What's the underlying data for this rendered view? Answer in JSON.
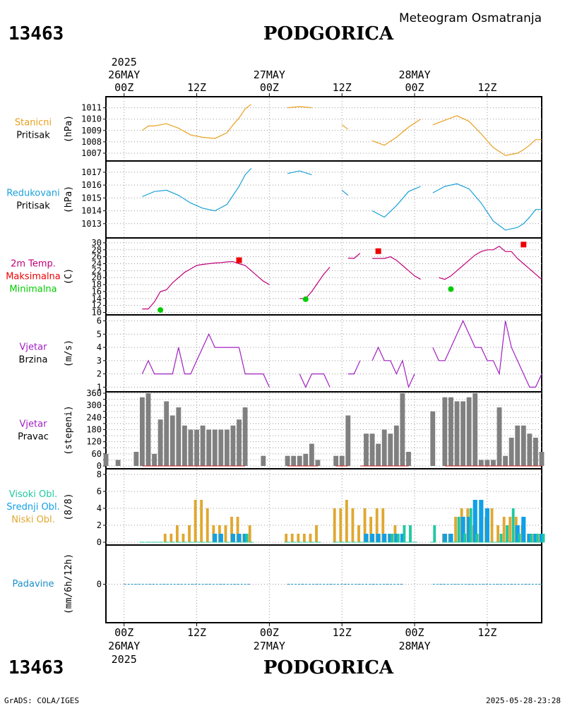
{
  "header": {
    "station_id": "13463",
    "station_name": "PODGORICA",
    "title": "Meteogram Osmatranja",
    "date_year": "2025"
  },
  "footer": {
    "station_id": "13463",
    "station_name": "PODGORICA",
    "credit": "GrADS: COLA/IGES",
    "generated": "2025-05-28-23:28",
    "date_year": "2025"
  },
  "time_axis": {
    "start": "2025-05-25 21Z",
    "step_hours": 3,
    "n": 25,
    "ticks": [
      {
        "hour": 3,
        "label": "00Z",
        "date": "26MAY"
      },
      {
        "hour": 15,
        "label": "12Z"
      },
      {
        "hour": 27,
        "label": "00Z",
        "date": "27MAY"
      },
      {
        "hour": 39,
        "label": "12Z"
      },
      {
        "hour": 51,
        "label": "00Z",
        "date": "28MAY"
      },
      {
        "hour": 63,
        "label": "12Z"
      }
    ]
  },
  "colors": {
    "station_pressure": "#e8a020",
    "sea_pressure": "#1aa0d8",
    "temperature": "#c0007a",
    "tmax": "#ee0000",
    "tmin": "#00cc00",
    "wind": "#a020c0",
    "direction_bar": "#808080",
    "high_cloud": "#20c8a0",
    "mid_cloud": "#10a0e8",
    "low_cloud": "#e0a830",
    "precip": "#1a90c8"
  },
  "chart_data": [
    {
      "type": "line",
      "id": "station_pressure",
      "label_lines": [
        "Stanicni",
        "Pritisak"
      ],
      "unit": "(hPa)",
      "ylim": [
        1006.5,
        1011.6
      ],
      "yticks": [
        1007,
        1008,
        1009,
        1010,
        1011
      ],
      "x_hours": [
        6,
        7,
        8,
        10,
        12,
        14,
        16,
        18,
        20,
        21,
        22,
        23,
        24,
        25,
        26,
        27,
        28,
        30,
        32,
        34,
        36,
        37,
        38,
        39,
        40,
        41,
        42,
        44,
        46,
        48,
        50,
        52,
        53,
        54,
        56,
        58,
        60,
        62,
        64,
        66,
        68,
        69,
        70,
        71,
        72
      ],
      "values": [
        1009.0,
        1009.4,
        1009.4,
        1009.6,
        1009.2,
        1008.6,
        1008.4,
        1008.3,
        1008.8,
        1009.5,
        1010.1,
        1010.9,
        1011.3,
        null,
        null,
        null,
        null,
        1011.0,
        1011.1,
        1011.0,
        null,
        null,
        null,
        1009.5,
        1009.1,
        null,
        null,
        1008.1,
        1007.7,
        1008.4,
        1009.3,
        1010.0,
        null,
        1009.5,
        1009.9,
        1010.3,
        1009.8,
        1008.7,
        1007.5,
        1006.8,
        1007.0,
        1007.3,
        1007.7,
        1008.2,
        1008.2
      ]
    },
    {
      "type": "line",
      "id": "sea_pressure",
      "label_lines": [
        "Redukovani",
        "Pritisak"
      ],
      "unit": "(hPa)",
      "ylim": [
        1012.0,
        1017.6
      ],
      "yticks": [
        1013,
        1014,
        1015,
        1016,
        1017
      ],
      "x_hours": [
        6,
        8,
        10,
        12,
        14,
        16,
        18,
        20,
        22,
        23,
        24,
        25,
        26,
        27,
        28,
        30,
        32,
        34,
        36,
        37,
        38,
        39,
        40,
        41,
        42,
        44,
        46,
        48,
        50,
        52,
        53,
        54,
        56,
        58,
        60,
        62,
        64,
        66,
        68,
        69,
        70,
        71,
        72
      ],
      "values": [
        1015.1,
        1015.5,
        1015.6,
        1015.2,
        1014.6,
        1014.2,
        1014.0,
        1014.5,
        1015.9,
        1016.8,
        1017.3,
        null,
        null,
        null,
        null,
        1016.9,
        1017.1,
        1016.8,
        null,
        null,
        null,
        1015.6,
        1015.2,
        null,
        null,
        1014.0,
        1013.5,
        1014.4,
        1015.5,
        1015.9,
        null,
        1015.4,
        1015.9,
        1016.1,
        1015.7,
        1014.6,
        1013.2,
        1012.5,
        1012.7,
        1013.0,
        1013.5,
        1014.1,
        1014.1
      ]
    },
    {
      "type": "line",
      "id": "temperature",
      "label_lines": [
        "2m Temp.",
        "Maksimalna",
        "Minimalna"
      ],
      "label_line_ids": [
        "temperature",
        "tmax",
        "tmin"
      ],
      "unit": "(C)",
      "ylim": [
        9.5,
        31
      ],
      "yticks": [
        10,
        12,
        14,
        16,
        18,
        20,
        22,
        24,
        26,
        28,
        30
      ],
      "x_hours": [
        3,
        4,
        5,
        6,
        7,
        8,
        9,
        10,
        11,
        12,
        13,
        14,
        15,
        16,
        17,
        18,
        19,
        20,
        21,
        22,
        23,
        24,
        25,
        26,
        27,
        28,
        29,
        30,
        31,
        32,
        33,
        34,
        35,
        36,
        37,
        38,
        39,
        40,
        41,
        42,
        43,
        44,
        45,
        46,
        47,
        48,
        49,
        50,
        51,
        52,
        53,
        54,
        55,
        56,
        57,
        58,
        59,
        60,
        61,
        62,
        63,
        64,
        65,
        66,
        67,
        68,
        69,
        70,
        71,
        72
      ],
      "values": [
        null,
        null,
        null,
        11,
        11,
        13,
        16,
        16.5,
        18.5,
        20,
        21.5,
        22.5,
        23.5,
        23.8,
        24,
        24.2,
        24.3,
        24.5,
        24.6,
        24,
        23.5,
        22,
        20.5,
        19,
        18,
        null,
        null,
        null,
        null,
        14,
        14,
        16,
        18.5,
        21,
        23,
        null,
        null,
        25.6,
        25.5,
        27,
        null,
        25.5,
        25.5,
        25.5,
        26,
        25,
        23.5,
        22,
        20.5,
        19.5,
        null,
        null,
        20,
        19.5,
        20.5,
        22,
        23.5,
        25,
        26.5,
        27.5,
        28,
        28,
        29,
        27.5,
        27.5,
        25.5,
        24,
        22.5,
        21,
        19.5
      ],
      "max_markers": [
        {
          "hour": 22,
          "value": 25
        },
        {
          "hour": 45,
          "value": 27.6
        },
        {
          "hour": 69,
          "value": 29.5
        }
      ],
      "min_markers": [
        {
          "hour": 9,
          "value": 10.7
        },
        {
          "hour": 33,
          "value": 13.8
        },
        {
          "hour": 57,
          "value": 16.7
        }
      ]
    },
    {
      "type": "line",
      "id": "wind_speed",
      "label_lines": [
        "Vjetar",
        "Brzina"
      ],
      "unit": "(m/s)",
      "ylim": [
        0.7,
        6.4
      ],
      "yticks": [
        1,
        2,
        3,
        4,
        5,
        6
      ],
      "x_hours": [
        3,
        4,
        5,
        6,
        7,
        8,
        9,
        10,
        11,
        12,
        13,
        14,
        15,
        16,
        17,
        18,
        19,
        20,
        21,
        22,
        23,
        24,
        25,
        26,
        27,
        28,
        29,
        30,
        31,
        32,
        33,
        34,
        35,
        36,
        37,
        38,
        39,
        40,
        41,
        42,
        43,
        44,
        45,
        46,
        47,
        48,
        49,
        50,
        51,
        52,
        53,
        54,
        55,
        56,
        57,
        58,
        59,
        60,
        61,
        62,
        63,
        64,
        65,
        66,
        67,
        68,
        69,
        70,
        71,
        72
      ],
      "values": [
        null,
        null,
        null,
        2,
        3,
        2,
        2,
        2,
        2,
        4,
        2,
        2,
        3,
        4,
        5,
        4,
        4,
        4,
        4,
        4,
        2,
        2,
        2,
        2,
        1,
        null,
        null,
        null,
        null,
        2,
        1,
        2,
        2,
        2,
        1,
        null,
        null,
        2,
        2,
        3,
        null,
        3,
        4,
        3,
        3,
        2,
        3,
        1,
        2,
        null,
        null,
        4,
        3,
        3,
        4,
        5,
        6,
        5,
        4,
        4,
        3,
        3,
        2,
        6,
        4,
        3,
        2,
        1,
        1,
        2
      ]
    },
    {
      "type": "bar",
      "id": "wind_direction",
      "label_lines": [
        "Vjetar",
        "Pravac"
      ],
      "unit": "(stepeni)",
      "ylim": [
        0,
        360
      ],
      "yticks": [
        0,
        30,
        60,
        90,
        120,
        150,
        180,
        210,
        240,
        270,
        300,
        330,
        360
      ],
      "ytick_labels": [
        0,
        60,
        120,
        180,
        240,
        300,
        360
      ],
      "x_hours": [
        0,
        2,
        5,
        6,
        7,
        8,
        9,
        10,
        11,
        12,
        13,
        14,
        15,
        16,
        17,
        18,
        19,
        20,
        21,
        22,
        23,
        24,
        26,
        30,
        31,
        32,
        33,
        34,
        35,
        38,
        39,
        40,
        42,
        43,
        44,
        45,
        46,
        47,
        48,
        49,
        50,
        51,
        54,
        56,
        57,
        58,
        59,
        60,
        61,
        62,
        63,
        64,
        65,
        66,
        67,
        68,
        69,
        70,
        71,
        72
      ],
      "values": [
        60,
        30,
        70,
        340,
        360,
        60,
        230,
        320,
        250,
        290,
        200,
        180,
        180,
        200,
        180,
        180,
        180,
        180,
        200,
        230,
        290,
        0,
        50,
        50,
        50,
        50,
        60,
        110,
        30,
        50,
        50,
        250,
        0,
        160,
        160,
        110,
        180,
        160,
        200,
        360,
        70,
        0,
        270,
        340,
        340,
        320,
        320,
        340,
        360,
        30,
        30,
        30,
        290,
        50,
        140,
        200,
        200,
        160,
        140,
        70
      ],
      "calm_segments": [
        [
          6,
          23
        ],
        [
          30,
          35
        ],
        [
          38,
          40
        ],
        [
          42,
          50
        ],
        [
          56,
          72
        ]
      ]
    },
    {
      "type": "bar",
      "id": "clouds",
      "label_lines": [
        "Visoki Obl.",
        "Srednji Obl.",
        "Niski Obl."
      ],
      "label_line_ids": [
        "high_cloud",
        "mid_cloud",
        "low_cloud"
      ],
      "unit": "(8/8)",
      "ylim": [
        0,
        8.5
      ],
      "yticks": [
        0,
        2,
        4,
        6,
        8
      ],
      "x_hours": [
        6,
        7,
        8,
        9,
        10,
        11,
        12,
        13,
        14,
        15,
        16,
        17,
        18,
        19,
        20,
        21,
        22,
        23,
        24,
        30,
        31,
        32,
        33,
        34,
        35,
        38,
        39,
        40,
        41,
        42,
        43,
        44,
        45,
        46,
        47,
        48,
        49,
        50,
        51,
        54,
        56,
        57,
        58,
        59,
        60,
        61,
        62,
        63,
        64,
        65,
        66,
        67,
        68,
        69,
        70,
        71,
        72
      ],
      "series": [
        {
          "name": "Niski Obl.",
          "values": [
            0,
            0,
            0,
            0,
            1,
            1,
            2,
            1,
            2,
            5,
            5,
            4,
            2,
            2,
            2,
            3,
            3,
            1,
            2,
            1,
            1,
            1,
            1,
            1,
            2,
            4,
            4,
            5,
            4,
            2,
            4,
            3,
            4,
            4,
            1,
            2,
            0,
            0,
            0,
            0,
            1,
            1,
            3,
            4,
            4,
            2,
            1,
            3,
            4,
            2,
            3,
            3,
            3,
            2,
            1,
            1,
            1
          ]
        },
        {
          "name": "Srednji Obl.",
          "values": [
            0,
            0,
            0,
            0,
            0,
            0,
            0,
            0,
            0,
            0,
            0,
            0,
            1,
            1,
            0,
            1,
            1,
            1,
            0,
            0,
            0,
            0,
            0,
            0,
            0,
            0,
            0,
            0,
            0,
            0,
            1,
            1,
            1,
            1,
            1,
            1,
            1,
            0,
            0,
            0,
            1,
            1,
            0,
            3,
            3,
            5,
            5,
            4,
            0,
            0,
            0,
            0,
            2,
            3,
            1,
            1,
            1
          ]
        },
        {
          "name": "Visoki Obl.",
          "values": [
            0,
            0,
            0,
            0,
            0,
            0,
            0,
            0,
            0,
            0,
            0,
            0,
            0,
            0,
            0,
            0,
            0,
            1,
            0,
            0,
            0,
            0,
            0,
            0,
            0,
            0,
            0,
            0,
            0,
            0,
            0,
            0,
            0,
            0,
            1,
            1,
            2,
            2,
            0,
            2,
            0,
            0,
            3,
            1,
            4,
            1,
            0,
            0,
            0,
            1,
            2,
            4,
            1,
            0,
            1,
            1,
            1
          ]
        }
      ]
    },
    {
      "type": "bar",
      "id": "precipitation",
      "label_lines": [
        "Padavine"
      ],
      "unit": "(mm/6h/12h)",
      "ylim": [
        -1,
        1
      ],
      "yticks": [
        0
      ],
      "values": [
        0
      ],
      "note": "no precipitation recorded; zero line dashes across observed periods",
      "zero_segments": [
        [
          3,
          24
        ],
        [
          30,
          49
        ],
        [
          54,
          72
        ]
      ]
    }
  ]
}
